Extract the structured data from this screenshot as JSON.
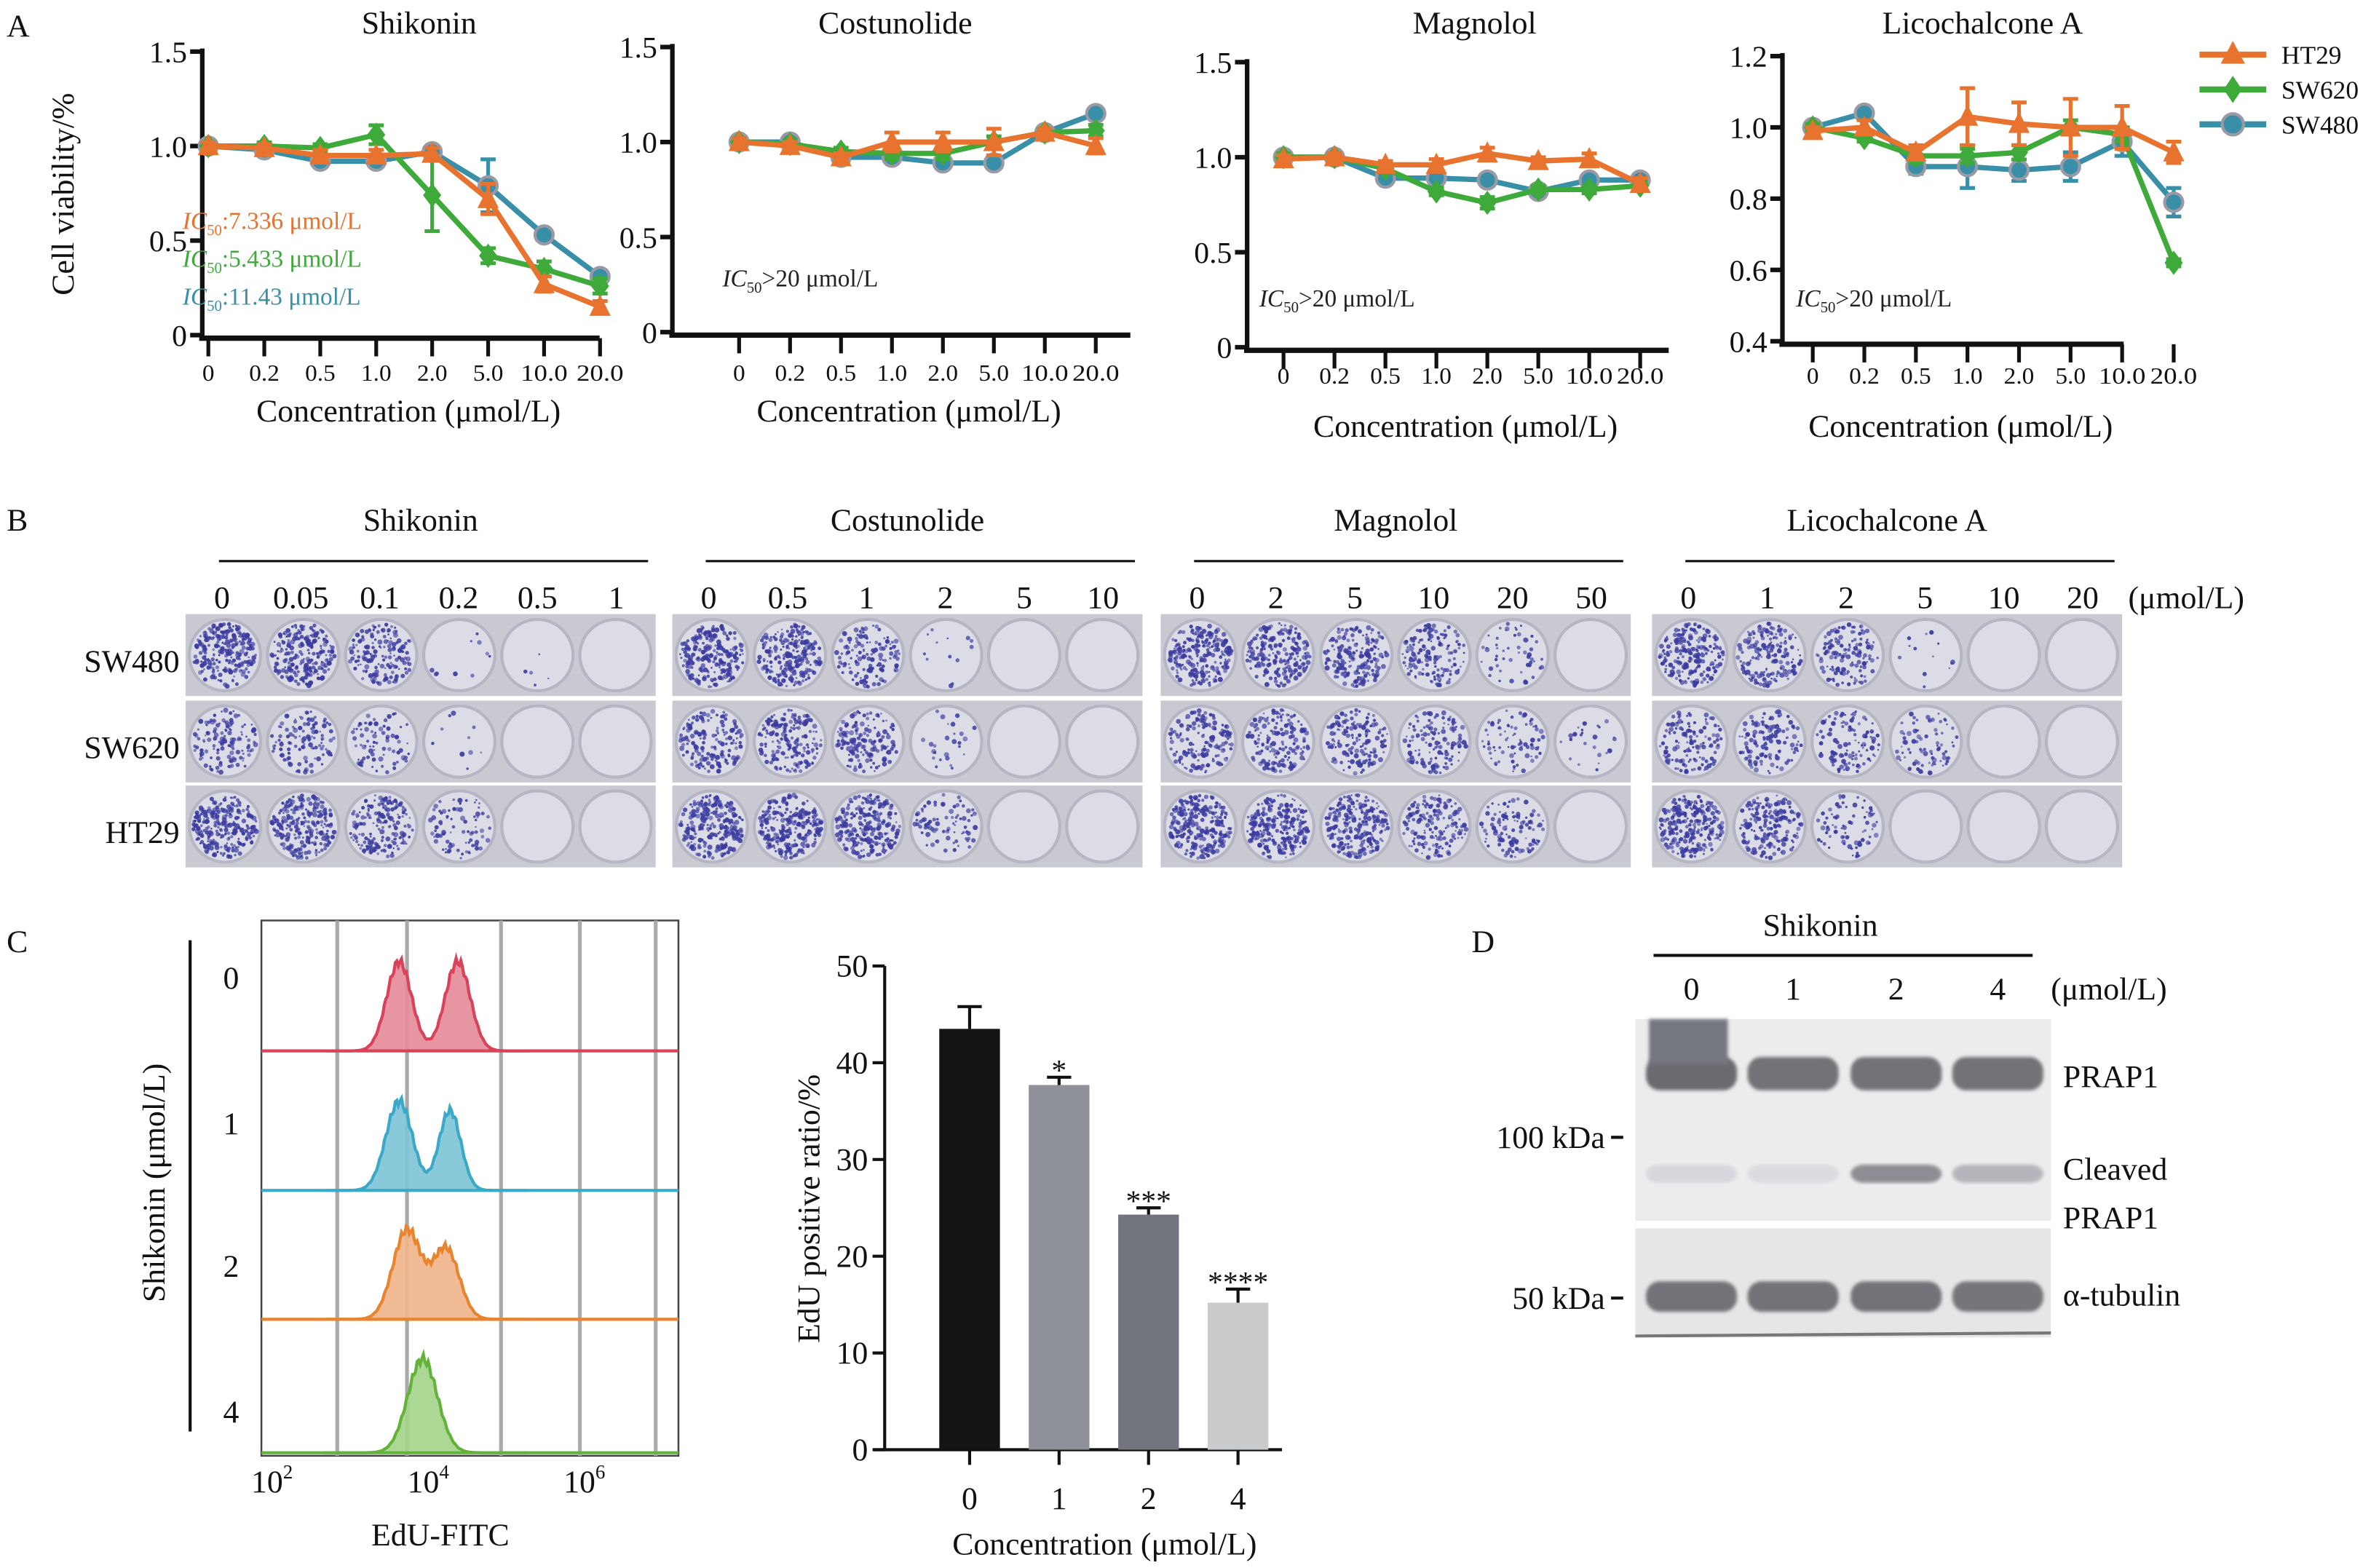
{
  "panel_labels": {
    "a": "A",
    "b": "B",
    "c": "C",
    "d": "D"
  },
  "colors": {
    "HT29": "#e8732e",
    "SW620": "#3daa3a",
    "SW480": "#3a8fa8",
    "axis": "#111111"
  },
  "chart_data": [
    {
      "type": "line",
      "panel": "A",
      "title": "Shikonin",
      "categories": [
        "0",
        "0.2",
        "0.5",
        "1.0",
        "2.0",
        "5.0",
        "10.0",
        "20.0"
      ],
      "xlabel": "Concentration (μmol/L)",
      "ylabel": "Cell viability/%",
      "ylim": [
        0,
        1.5
      ],
      "yticks": [
        "0",
        "0.5",
        "1.0",
        "1.5"
      ],
      "annotations": [
        {
          "text": "IC50:7.336 μmol/L",
          "italic_part": "IC",
          "sub": "50",
          "rest": ":7.336 μmol/L",
          "series": "HT29"
        },
        {
          "text": "IC50:5.433 μmol/L",
          "italic_part": "IC",
          "sub": "50",
          "rest": ":5.433 μmol/L",
          "series": "SW620"
        },
        {
          "text": "IC50:11.43 μmol/L",
          "italic_part": "IC",
          "sub": "50",
          "rest": ":11.43 μmol/L",
          "series": "SW480"
        }
      ],
      "series": [
        {
          "name": "HT29",
          "values": [
            1.0,
            0.99,
            0.95,
            0.95,
            0.96,
            0.72,
            0.27,
            0.15
          ],
          "err": [
            0.02,
            0.02,
            0.03,
            0.03,
            0.03,
            0.08,
            0.04,
            0.03
          ]
        },
        {
          "name": "SW620",
          "values": [
            1.0,
            1.0,
            0.99,
            1.06,
            0.74,
            0.42,
            0.35,
            0.26
          ],
          "err": [
            0.02,
            0.02,
            0.02,
            0.05,
            0.19,
            0.04,
            0.04,
            0.04
          ]
        },
        {
          "name": "SW480",
          "values": [
            1.0,
            0.98,
            0.92,
            0.92,
            0.97,
            0.79,
            0.53,
            0.31
          ],
          "err": [
            0.02,
            0.02,
            0.02,
            0.02,
            0.02,
            0.14,
            0.02,
            0.03
          ]
        }
      ]
    },
    {
      "type": "line",
      "panel": "A",
      "title": "Costunolide",
      "categories": [
        "0",
        "0.2",
        "0.5",
        "1.0",
        "2.0",
        "5.0",
        "10.0",
        "20.0"
      ],
      "xlabel": "Concentration (μmol/L)",
      "ylim": [
        0,
        1.5
      ],
      "yticks": [
        "0",
        "0.5",
        "1.0",
        "1.5"
      ],
      "annotations": [
        {
          "text": "IC50>20 μmol/L",
          "italic_part": "IC",
          "sub": "50",
          "rest": ">20 μmol/L"
        }
      ],
      "series": [
        {
          "name": "HT29",
          "values": [
            1.0,
            0.98,
            0.92,
            1.0,
            1.0,
            1.0,
            1.05,
            0.98
          ],
          "err": [
            0.02,
            0.02,
            0.02,
            0.05,
            0.05,
            0.07,
            0.02,
            0.04
          ]
        },
        {
          "name": "SW620",
          "values": [
            1.0,
            0.99,
            0.95,
            0.94,
            0.94,
            1.0,
            1.05,
            1.06
          ],
          "err": [
            0.02,
            0.02,
            0.02,
            0.03,
            0.03,
            0.03,
            0.02,
            0.03
          ]
        },
        {
          "name": "SW480",
          "values": [
            1.0,
            1.0,
            0.92,
            0.92,
            0.89,
            0.89,
            1.05,
            1.15
          ],
          "err": [
            0.02,
            0.02,
            0.02,
            0.03,
            0.02,
            0.02,
            0.02,
            0.02
          ]
        }
      ]
    },
    {
      "type": "line",
      "panel": "A",
      "title": "Magnolol",
      "categories": [
        "0",
        "0.2",
        "0.5",
        "1.0",
        "2.0",
        "5.0",
        "10.0",
        "20.0"
      ],
      "xlabel": "Concentration (μmol/L)",
      "ylim": [
        0,
        1.5
      ],
      "yticks": [
        "0",
        "0.5",
        "1.0",
        "1.5"
      ],
      "annotations": [
        {
          "text": "IC50>20 μmol/L",
          "italic_part": "IC",
          "sub": "50",
          "rest": ">20 μmol/L"
        }
      ],
      "series": [
        {
          "name": "HT29",
          "values": [
            0.99,
            1.0,
            0.96,
            0.96,
            1.02,
            0.98,
            0.99,
            0.86
          ],
          "err": [
            0.02,
            0.02,
            0.02,
            0.03,
            0.03,
            0.02,
            0.03,
            0.03
          ]
        },
        {
          "name": "SW620",
          "values": [
            1.0,
            1.0,
            0.94,
            0.82,
            0.76,
            0.83,
            0.83,
            0.85
          ],
          "err": [
            0.02,
            0.02,
            0.02,
            0.02,
            0.03,
            0.02,
            0.02,
            0.02
          ]
        },
        {
          "name": "SW480",
          "values": [
            1.0,
            1.0,
            0.89,
            0.89,
            0.88,
            0.82,
            0.88,
            0.88
          ],
          "err": [
            0.02,
            0.02,
            0.02,
            0.02,
            0.02,
            0.02,
            0.02,
            0.03
          ]
        }
      ]
    },
    {
      "type": "line",
      "panel": "A",
      "title": "Licochalcone A",
      "categories": [
        "0",
        "0.2",
        "0.5",
        "1.0",
        "2.0",
        "5.0",
        "10.0",
        "20.0"
      ],
      "xlabel": "Concentration (μmol/L)",
      "ylim": [
        0.4,
        1.2
      ],
      "yticks": [
        "0.4",
        "0.6",
        "0.8",
        "1.0",
        "1.2"
      ],
      "legend": {
        "position": "top-right",
        "entries": [
          "HT29",
          "SW620",
          "SW480"
        ]
      },
      "annotations": [
        {
          "text": "IC50>20 μmol/L",
          "italic_part": "IC",
          "sub": "50",
          "rest": ">20 μmol/L"
        }
      ],
      "series": [
        {
          "name": "HT29",
          "values": [
            0.99,
            1.0,
            0.93,
            1.03,
            1.01,
            1.0,
            1.0,
            0.93
          ],
          "err": [
            0.01,
            0.02,
            0.02,
            0.08,
            0.06,
            0.08,
            0.06,
            0.03
          ]
        },
        {
          "name": "SW620",
          "values": [
            1.0,
            0.97,
            0.92,
            0.92,
            0.93,
            1.0,
            0.98,
            0.62
          ],
          "err": [
            0.01,
            0.01,
            0.02,
            0.02,
            0.02,
            0.02,
            0.02,
            0.01
          ]
        },
        {
          "name": "SW480",
          "values": [
            1.0,
            1.04,
            0.89,
            0.89,
            0.88,
            0.89,
            0.96,
            0.79
          ],
          "err": [
            0.01,
            0.01,
            0.02,
            0.06,
            0.03,
            0.04,
            0.04,
            0.04
          ]
        }
      ]
    },
    {
      "type": "histogram",
      "panel": "C",
      "xlabel": "EdU-FITC",
      "ylabel": "Shikonin (μmol/L)",
      "xscale": "log",
      "xticks": [
        {
          "base": "10",
          "exp": "2"
        },
        {
          "base": "10",
          "exp": "4"
        },
        {
          "base": "10",
          "exp": "6"
        }
      ],
      "rows": [
        {
          "label": "0",
          "color": "#d9435a",
          "fill": "#e58a99",
          "peaks_log10": [
            [
              3.55,
              0.16,
              0.95
            ],
            [
              4.3,
              0.16,
              0.95
            ]
          ]
        },
        {
          "label": "1",
          "color": "#3aa9c8",
          "fill": "#7cc3d6",
          "peaks_log10": [
            [
              3.55,
              0.17,
              0.95
            ],
            [
              4.2,
              0.14,
              0.85
            ]
          ]
        },
        {
          "label": "2",
          "color": "#e8832e",
          "fill": "#f0b48a",
          "peaks_log10": [
            [
              3.65,
              0.18,
              0.95
            ],
            [
              4.15,
              0.17,
              0.75
            ]
          ]
        },
        {
          "label": "4",
          "color": "#63b33a",
          "fill": "#a3d38a",
          "peaks_log10": [
            [
              3.85,
              0.19,
              1.0
            ]
          ]
        }
      ]
    },
    {
      "type": "bar",
      "panel": "C",
      "categories": [
        "0",
        "1",
        "2",
        "4"
      ],
      "values": [
        43.5,
        37.7,
        24.3,
        15.2
      ],
      "err": [
        2.3,
        0.8,
        0.7,
        1.4
      ],
      "significance": [
        "",
        "*",
        "***",
        "****"
      ],
      "bar_colors": [
        "#141414",
        "#8e9199",
        "#72757d",
        "#c9cacc"
      ],
      "xlabel": "Concentration (μmol/L)",
      "ylabel": "EdU positive ratio/%",
      "ylim": [
        0,
        50
      ],
      "yticks": [
        "0",
        "10",
        "20",
        "30",
        "40",
        "50"
      ]
    }
  ],
  "colony_assay": {
    "unit": "(μmol/L)",
    "row_labels": [
      "SW480",
      "SW620",
      "HT29"
    ],
    "groups": [
      {
        "title": "Shikonin",
        "doses": [
          "0",
          "0.05",
          "0.1",
          "0.2",
          "0.5",
          "1"
        ],
        "density": [
          [
            0.9,
            0.8,
            0.6,
            0.04,
            0.02,
            0
          ],
          [
            0.5,
            0.45,
            0.3,
            0.04,
            0,
            0
          ],
          [
            0.95,
            0.9,
            0.7,
            0.3,
            0,
            0
          ]
        ]
      },
      {
        "title": "Costunolide",
        "doses": [
          "0",
          "0.5",
          "1",
          "2",
          "5",
          "10"
        ],
        "density": [
          [
            0.9,
            0.9,
            0.5,
            0.05,
            0,
            0
          ],
          [
            0.6,
            0.7,
            0.6,
            0.1,
            0,
            0
          ],
          [
            0.95,
            0.95,
            0.9,
            0.3,
            0,
            0
          ]
        ]
      },
      {
        "title": "Magnolol",
        "doses": [
          "0",
          "2",
          "5",
          "10",
          "20",
          "50"
        ],
        "density": [
          [
            0.9,
            0.8,
            0.7,
            0.6,
            0.2,
            0
          ],
          [
            0.6,
            0.6,
            0.6,
            0.5,
            0.3,
            0.1
          ],
          [
            0.95,
            0.9,
            0.85,
            0.6,
            0.4,
            0
          ]
        ]
      },
      {
        "title": "Licochalcone A",
        "doses": [
          "0",
          "1",
          "2",
          "5",
          "10",
          "20"
        ],
        "density": [
          [
            0.8,
            0.7,
            0.5,
            0.05,
            0,
            0
          ],
          [
            0.5,
            0.5,
            0.4,
            0.3,
            0,
            0
          ],
          [
            0.9,
            0.7,
            0.3,
            0,
            0,
            0
          ]
        ]
      }
    ]
  },
  "western_blot": {
    "title": "Shikonin",
    "lanes": [
      "0",
      "1",
      "2",
      "4"
    ],
    "unit": "(μmol/L)",
    "markers": [
      "100 kDa",
      "50 kDa"
    ],
    "bands": [
      {
        "label": "PRAP1",
        "intensity": [
          0.95,
          0.9,
          0.9,
          0.9
        ]
      },
      {
        "label": "Cleaved",
        "label2": "PRAP1",
        "intensity": [
          0.15,
          0.12,
          0.7,
          0.4
        ]
      },
      {
        "label": "α-tubulin",
        "intensity": [
          0.9,
          0.9,
          0.9,
          0.88
        ]
      }
    ]
  }
}
